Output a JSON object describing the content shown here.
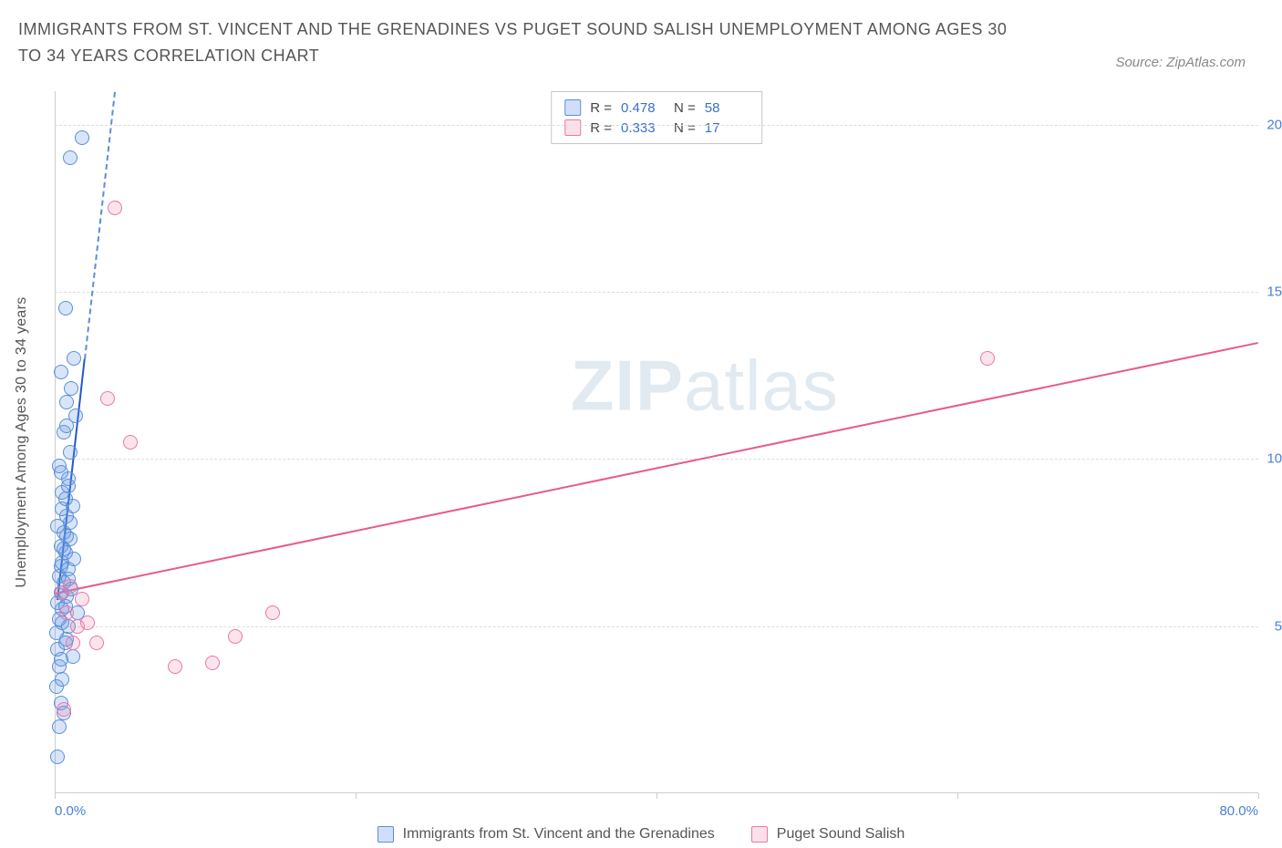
{
  "header": {
    "title": "IMMIGRANTS FROM ST. VINCENT AND THE GRENADINES VS PUGET SOUND SALISH UNEMPLOYMENT AMONG AGES 30 TO 34 YEARS CORRELATION CHART",
    "source": "Source: ZipAtlas.com"
  },
  "chart": {
    "type": "scatter",
    "background_color": "#ffffff",
    "grid_color": "#dddddd",
    "axis_color": "#cccccc",
    "y_axis_label": "Unemployment Among Ages 30 to 34 years",
    "y_axis_label_color": "#555555",
    "tick_label_color": "#4a7fd8",
    "title_color": "#555555",
    "title_fontsize": 18,
    "label_fontsize": 16,
    "tick_fontsize": 15,
    "xlim": [
      0,
      80
    ],
    "ylim": [
      0,
      21
    ],
    "x_ticks": [
      0,
      20,
      40,
      60,
      80
    ],
    "x_tick_labels": [
      "0.0%",
      "",
      "",
      "",
      "80.0%"
    ],
    "y_ticks": [
      5,
      10,
      15,
      20
    ],
    "y_tick_labels": [
      "5.0%",
      "10.0%",
      "15.0%",
      "20.0%"
    ],
    "marker_size": 16,
    "series": [
      {
        "id": "s1",
        "name": "Immigrants from St. Vincent and the Grenadines",
        "point_fill": "rgba(100,150,230,0.25)",
        "point_stroke": "#5a8fd8",
        "trend_solid_color": "#2458c8",
        "trend_dash_color": "#5a8fd8",
        "R": "0.478",
        "N": "58",
        "points": [
          [
            0.2,
            1.1
          ],
          [
            0.4,
            2.7
          ],
          [
            0.1,
            3.2
          ],
          [
            0.5,
            3.4
          ],
          [
            0.3,
            3.8
          ],
          [
            1.2,
            4.1
          ],
          [
            0.2,
            4.3
          ],
          [
            0.7,
            4.5
          ],
          [
            0.1,
            4.8
          ],
          [
            0.9,
            5.0
          ],
          [
            0.3,
            5.2
          ],
          [
            1.5,
            5.4
          ],
          [
            0.5,
            5.5
          ],
          [
            0.2,
            5.7
          ],
          [
            0.8,
            5.9
          ],
          [
            0.4,
            6.0
          ],
          [
            1.1,
            6.1
          ],
          [
            0.6,
            6.3
          ],
          [
            0.3,
            6.5
          ],
          [
            0.9,
            6.7
          ],
          [
            0.5,
            6.9
          ],
          [
            1.3,
            7.0
          ],
          [
            0.7,
            7.2
          ],
          [
            0.4,
            7.4
          ],
          [
            1.0,
            7.6
          ],
          [
            0.6,
            7.8
          ],
          [
            0.2,
            8.0
          ],
          [
            0.8,
            8.3
          ],
          [
            1.2,
            8.6
          ],
          [
            0.5,
            9.0
          ],
          [
            0.9,
            9.4
          ],
          [
            0.3,
            9.8
          ],
          [
            1.0,
            10.2
          ],
          [
            0.6,
            10.8
          ],
          [
            1.4,
            11.3
          ],
          [
            0.8,
            11.7
          ],
          [
            1.1,
            12.1
          ],
          [
            0.4,
            12.6
          ],
          [
            1.3,
            13.0
          ],
          [
            0.7,
            14.5
          ],
          [
            1.0,
            19.0
          ],
          [
            1.8,
            19.6
          ],
          [
            0.3,
            2.0
          ],
          [
            0.6,
            2.4
          ],
          [
            0.4,
            4.0
          ],
          [
            0.8,
            4.6
          ],
          [
            0.5,
            5.1
          ],
          [
            0.7,
            5.6
          ],
          [
            0.9,
            6.4
          ],
          [
            0.4,
            6.8
          ],
          [
            0.6,
            7.3
          ],
          [
            0.8,
            7.7
          ],
          [
            1.0,
            8.1
          ],
          [
            0.5,
            8.5
          ],
          [
            0.7,
            8.8
          ],
          [
            0.9,
            9.2
          ],
          [
            0.4,
            9.6
          ],
          [
            0.8,
            11.0
          ]
        ],
        "trend_solid": {
          "x1": 0.2,
          "y1": 5.8,
          "x2": 2.0,
          "y2": 13.0
        },
        "trend_dash": {
          "x1": 2.0,
          "y1": 13.0,
          "x2": 4.0,
          "y2": 21.0
        }
      },
      {
        "id": "s2",
        "name": "Puget Sound Salish",
        "point_fill": "rgba(240,130,170,0.22)",
        "point_stroke": "#e878a8",
        "trend_solid_color": "#e85a90",
        "R": "0.333",
        "N": "17",
        "points": [
          [
            0.6,
            2.5
          ],
          [
            1.2,
            4.5
          ],
          [
            2.8,
            4.5
          ],
          [
            1.5,
            5.0
          ],
          [
            2.2,
            5.1
          ],
          [
            0.8,
            5.4
          ],
          [
            1.8,
            5.8
          ],
          [
            0.5,
            6.0
          ],
          [
            1.0,
            6.2
          ],
          [
            8.0,
            3.8
          ],
          [
            10.5,
            3.9
          ],
          [
            12.0,
            4.7
          ],
          [
            14.5,
            5.4
          ],
          [
            5.0,
            10.5
          ],
          [
            3.5,
            11.8
          ],
          [
            4.0,
            17.5
          ],
          [
            62.0,
            13.0
          ]
        ],
        "trend_solid": {
          "x1": 0,
          "y1": 6.0,
          "x2": 80,
          "y2": 13.5
        }
      }
    ],
    "legend_top": {
      "border_color": "#c8c8c8",
      "rows": [
        {
          "series": "s1",
          "R_label": "R =",
          "N_label": "N ="
        },
        {
          "series": "s2",
          "R_label": "R =",
          "N_label": "N ="
        }
      ]
    },
    "watermark": {
      "text_bold": "ZIP",
      "text_light": "atlas",
      "color": "rgba(120,160,190,0.22)",
      "fontsize": 78
    }
  },
  "legend_bottom": {
    "items": [
      {
        "series": "s1",
        "label": "Immigrants from St. Vincent and the Grenadines"
      },
      {
        "series": "s2",
        "label": "Puget Sound Salish"
      }
    ]
  }
}
